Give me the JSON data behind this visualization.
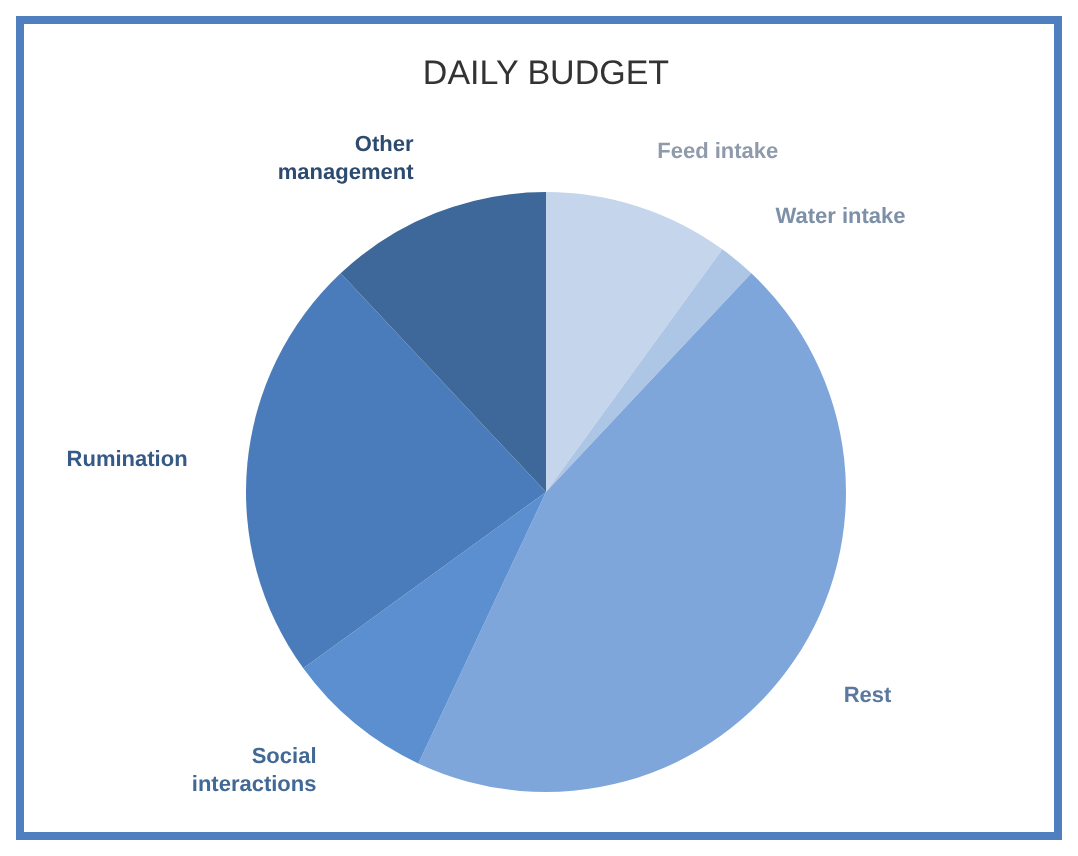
{
  "chart_data": {
    "type": "pie",
    "title": "DAILY BUDGET",
    "categories": [
      "Feed intake",
      "Water intake",
      "Rest",
      "Social interactions",
      "Rumination",
      "Other management"
    ],
    "values": [
      10,
      2,
      45,
      8,
      23,
      12
    ],
    "colors": [
      "#c5d5eb",
      "#adc6e6",
      "#7ea6db",
      "#5b8fcf",
      "#4a7cbb",
      "#3d6899"
    ]
  }
}
